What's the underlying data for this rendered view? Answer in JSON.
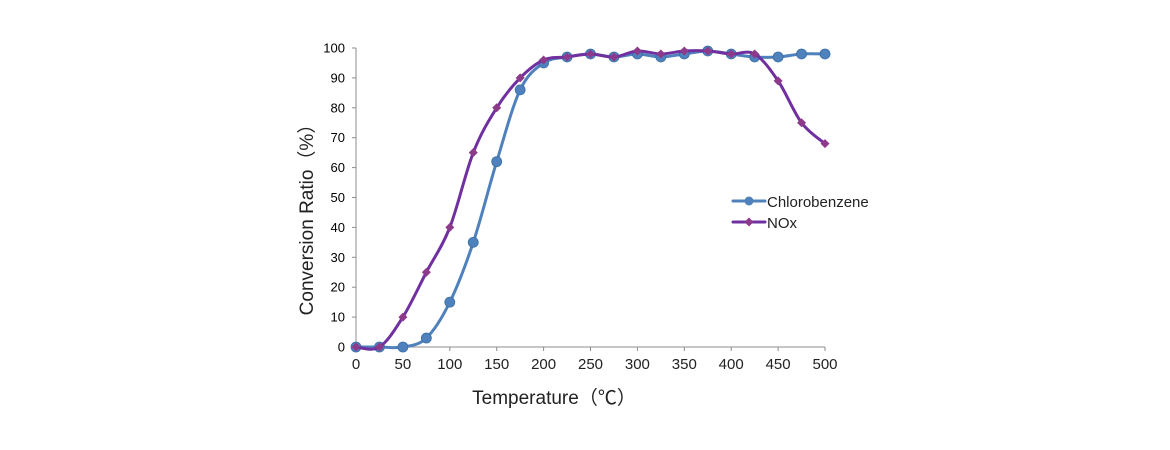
{
  "chart_data": {
    "type": "line",
    "title": "",
    "xlabel": "Temperature（℃）",
    "ylabel": "Conversion Ratio（%）",
    "xlim": [
      0,
      500
    ],
    "ylim": [
      0,
      100
    ],
    "xticks": [
      "0",
      "50",
      "100",
      "150",
      "200",
      "250",
      "300",
      "350",
      "400",
      "450",
      "500"
    ],
    "yticks": [
      "0",
      "10",
      "20",
      "30",
      "40",
      "50",
      "60",
      "70",
      "80",
      "90",
      "100"
    ],
    "grid": false,
    "legend_position": "right",
    "series": [
      {
        "name": "Chlorobenzene",
        "color": "#4F81BD",
        "marker": "circle",
        "x": [
          0,
          25,
          50,
          75,
          100,
          125,
          150,
          175,
          200,
          225,
          250,
          275,
          300,
          325,
          350,
          375,
          400,
          425,
          450,
          475,
          500
        ],
        "values": [
          0,
          0,
          0,
          3,
          15,
          35,
          62,
          86,
          95,
          97,
          98,
          97,
          98,
          97,
          98,
          99,
          98,
          97,
          97,
          98,
          98
        ]
      },
      {
        "name": "NOx",
        "color": "#7030A0",
        "marker": "diamond",
        "x": [
          0,
          25,
          50,
          75,
          100,
          125,
          150,
          175,
          200,
          225,
          250,
          275,
          300,
          325,
          350,
          375,
          400,
          425,
          450,
          475,
          500
        ],
        "values": [
          0,
          0,
          10,
          25,
          40,
          65,
          80,
          90,
          96,
          97,
          98,
          97,
          99,
          98,
          99,
          99,
          98,
          98,
          89,
          75,
          68
        ]
      }
    ]
  }
}
